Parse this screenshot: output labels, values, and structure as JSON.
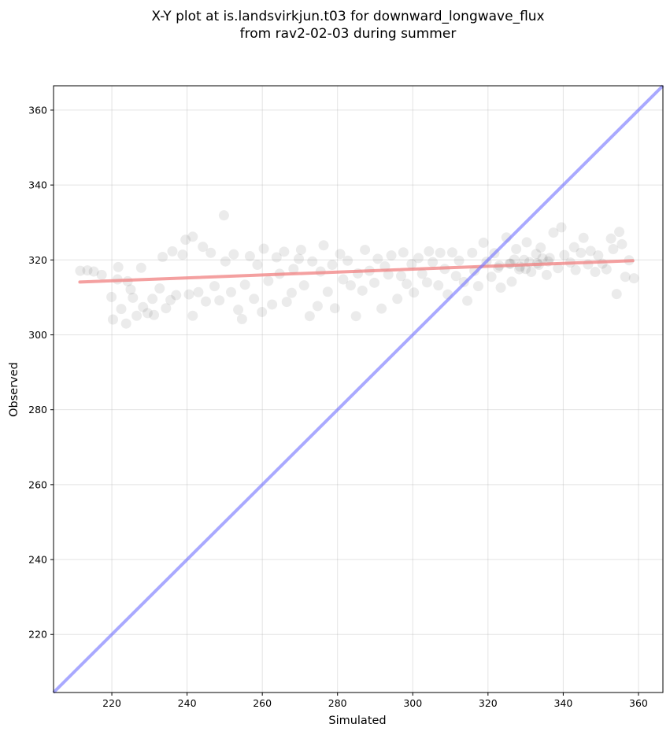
{
  "chart_data": {
    "type": "scatter",
    "title_lines": [
      "X-Y plot at is.landsvirkjun.t03 for downward_longwave_flux",
      "from rav2-02-03 during summer"
    ],
    "xlabel": "Simulated",
    "ylabel": "Observed",
    "xlim": [
      204.5,
      366.5
    ],
    "ylim": [
      204.5,
      366.5
    ],
    "xticks": [
      220,
      240,
      260,
      280,
      300,
      320,
      340,
      360
    ],
    "yticks": [
      220,
      240,
      260,
      280,
      300,
      320,
      340,
      360
    ],
    "grid": true,
    "point_color": "#000000",
    "point_alpha": 0.08,
    "fit_line": {
      "x": [
        211.5,
        358.5
      ],
      "y": [
        314.1,
        319.8
      ],
      "color": "#f08080"
    },
    "identity_line": {
      "x": [
        204.5,
        366.5
      ],
      "y": [
        204.5,
        366.5
      ],
      "color": "#7070ff"
    },
    "points": [
      [
        211.6,
        317.1
      ],
      [
        213.5,
        317.2
      ],
      [
        215.2,
        316.9
      ],
      [
        217.3,
        316.0
      ],
      [
        219.9,
        310.1
      ],
      [
        220.3,
        304.1
      ],
      [
        221.5,
        314.8
      ],
      [
        221.7,
        318.1
      ],
      [
        222.5,
        306.9
      ],
      [
        223.8,
        303.0
      ],
      [
        224.2,
        314.3
      ],
      [
        225.0,
        312.1
      ],
      [
        225.6,
        309.9
      ],
      [
        226.6,
        305.1
      ],
      [
        227.8,
        317.9
      ],
      [
        228.3,
        307.4
      ],
      [
        229.5,
        305.8
      ],
      [
        230.8,
        309.6
      ],
      [
        231.2,
        305.3
      ],
      [
        232.7,
        312.4
      ],
      [
        233.5,
        320.8
      ],
      [
        234.4,
        307.1
      ],
      [
        235.6,
        309.3
      ],
      [
        236.1,
        322.3
      ],
      [
        237.1,
        310.6
      ],
      [
        238.8,
        321.4
      ],
      [
        239.6,
        325.4
      ],
      [
        240.5,
        310.8
      ],
      [
        241.5,
        305.1
      ],
      [
        241.5,
        326.2
      ],
      [
        243.0,
        311.4
      ],
      [
        244.2,
        323.5
      ],
      [
        245.0,
        308.9
      ],
      [
        246.3,
        321.9
      ],
      [
        247.3,
        313.0
      ],
      [
        248.6,
        309.2
      ],
      [
        249.8,
        331.9
      ],
      [
        250.2,
        319.6
      ],
      [
        251.7,
        311.4
      ],
      [
        252.4,
        321.5
      ],
      [
        253.6,
        306.7
      ],
      [
        254.6,
        304.2
      ],
      [
        255.4,
        313.4
      ],
      [
        256.7,
        321.0
      ],
      [
        257.8,
        309.6
      ],
      [
        258.7,
        318.7
      ],
      [
        259.9,
        306.1
      ],
      [
        260.4,
        323.0
      ],
      [
        261.6,
        314.4
      ],
      [
        262.6,
        308.1
      ],
      [
        263.8,
        320.7
      ],
      [
        264.6,
        316.3
      ],
      [
        265.8,
        322.2
      ],
      [
        266.5,
        308.8
      ],
      [
        267.8,
        311.2
      ],
      [
        268.3,
        317.6
      ],
      [
        269.7,
        320.3
      ],
      [
        270.3,
        322.7
      ],
      [
        271.1,
        313.2
      ],
      [
        272.6,
        305.0
      ],
      [
        273.3,
        319.6
      ],
      [
        274.7,
        307.7
      ],
      [
        275.5,
        316.9
      ],
      [
        276.3,
        323.9
      ],
      [
        277.4,
        311.5
      ],
      [
        278.6,
        318.7
      ],
      [
        279.3,
        307.1
      ],
      [
        280.7,
        321.6
      ],
      [
        281.5,
        314.8
      ],
      [
        282.7,
        319.8
      ],
      [
        283.5,
        313.2
      ],
      [
        284.9,
        305.0
      ],
      [
        285.4,
        316.4
      ],
      [
        286.6,
        311.8
      ],
      [
        287.3,
        322.7
      ],
      [
        288.5,
        317.1
      ],
      [
        289.8,
        313.9
      ],
      [
        290.7,
        320.3
      ],
      [
        291.7,
        307.0
      ],
      [
        292.6,
        318.3
      ],
      [
        293.5,
        316.1
      ],
      [
        294.3,
        321.2
      ],
      [
        295.9,
        309.6
      ],
      [
        296.9,
        315.7
      ],
      [
        297.5,
        322.0
      ],
      [
        298.4,
        313.6
      ],
      [
        299.7,
        318.9
      ],
      [
        300.3,
        311.3
      ],
      [
        301.5,
        320.5
      ],
      [
        302.5,
        316.3
      ],
      [
        303.8,
        314.0
      ],
      [
        304.3,
        322.3
      ],
      [
        305.3,
        319.4
      ],
      [
        306.8,
        313.2
      ],
      [
        307.3,
        321.9
      ],
      [
        308.5,
        317.6
      ],
      [
        309.3,
        310.8
      ],
      [
        310.5,
        322.0
      ],
      [
        311.5,
        315.7
      ],
      [
        312.3,
        319.8
      ],
      [
        313.6,
        314.1
      ],
      [
        314.5,
        309.1
      ],
      [
        315.8,
        321.9
      ],
      [
        316.4,
        317.1
      ],
      [
        317.4,
        313.0
      ],
      [
        318.8,
        324.6
      ],
      [
        319.6,
        319.5
      ],
      [
        320.9,
        315.5
      ],
      [
        321.7,
        321.8
      ],
      [
        322.7,
        317.9
      ],
      [
        323.4,
        312.6
      ],
      [
        324.9,
        326.0
      ],
      [
        325.7,
        319.0
      ],
      [
        326.3,
        314.2
      ],
      [
        327.5,
        322.9
      ],
      [
        328.3,
        317.5
      ],
      [
        329.6,
        320.0
      ],
      [
        330.3,
        324.7
      ],
      [
        331.5,
        316.8
      ],
      [
        332.8,
        321.6
      ],
      [
        333.1,
        319.1
      ],
      [
        334.0,
        323.3
      ],
      [
        335.6,
        316.0
      ],
      [
        336.4,
        320.5
      ],
      [
        337.4,
        327.3
      ],
      [
        338.6,
        317.8
      ],
      [
        339.5,
        328.7
      ],
      [
        340.3,
        321.3
      ],
      [
        341.9,
        319.3
      ],
      [
        342.9,
        323.4
      ],
      [
        343.3,
        317.3
      ],
      [
        344.7,
        321.9
      ],
      [
        345.4,
        325.9
      ],
      [
        346.6,
        318.8
      ],
      [
        347.3,
        322.4
      ],
      [
        348.5,
        316.8
      ],
      [
        349.3,
        321.2
      ],
      [
        350.4,
        319.0
      ],
      [
        351.5,
        317.5
      ],
      [
        352.7,
        325.7
      ],
      [
        353.3,
        322.9
      ],
      [
        354.2,
        310.9
      ],
      [
        354.9,
        327.5
      ],
      [
        355.6,
        324.2
      ],
      [
        356.5,
        315.5
      ],
      [
        357.5,
        319.9
      ],
      [
        358.8,
        315.1
      ],
      [
        323.0,
        318.5
      ],
      [
        326.0,
        319.0
      ],
      [
        328.5,
        318.2
      ],
      [
        331.0,
        319.4
      ],
      [
        333.5,
        318.7
      ],
      [
        336.0,
        319.6
      ],
      [
        330.0,
        317.6
      ],
      [
        327.0,
        320.1
      ],
      [
        334.5,
        320.4
      ]
    ]
  }
}
